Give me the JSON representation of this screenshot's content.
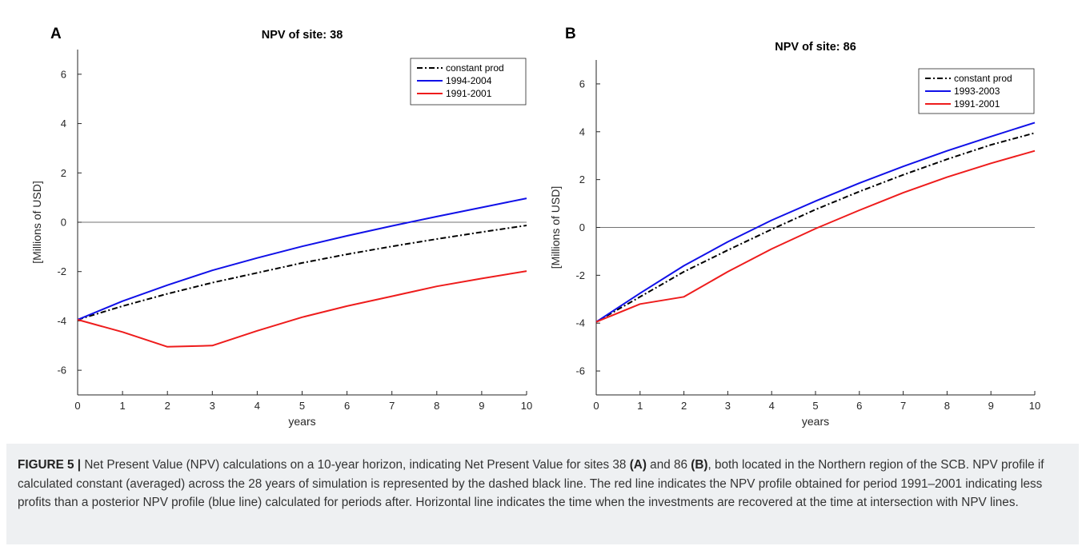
{
  "chart_data": [
    {
      "panel_label": "A",
      "type": "line",
      "title": "NPV of site: 38",
      "xlabel": "years",
      "ylabel": "[Millions of USD]",
      "xlim": [
        0,
        10
      ],
      "ylim": [
        -7,
        7
      ],
      "xticks": [
        0,
        1,
        2,
        3,
        4,
        5,
        6,
        7,
        8,
        9,
        10
      ],
      "yticks": [
        -6,
        -4,
        -2,
        0,
        2,
        4,
        6
      ],
      "zero_line": true,
      "grid": false,
      "legend_position": "top-right",
      "x": [
        0,
        1,
        2,
        3,
        4,
        5,
        6,
        7,
        8,
        9,
        10
      ],
      "series": [
        {
          "name": "constant prod",
          "color": "#000000",
          "style": "dashdot",
          "values": [
            -3.95,
            -3.4,
            -2.9,
            -2.45,
            -2.05,
            -1.65,
            -1.3,
            -0.98,
            -0.68,
            -0.4,
            -0.13
          ]
        },
        {
          "name": "1994-2004",
          "color": "#1010e8",
          "style": "solid",
          "values": [
            -3.95,
            -3.2,
            -2.55,
            -1.95,
            -1.45,
            -0.98,
            -0.55,
            -0.15,
            0.23,
            0.6,
            0.97
          ]
        },
        {
          "name": "1991-2001",
          "color": "#ee1c1c",
          "style": "solid",
          "values": [
            -3.95,
            -4.45,
            -5.05,
            -5.0,
            -4.4,
            -3.85,
            -3.4,
            -3.0,
            -2.6,
            -2.28,
            -1.98
          ]
        }
      ]
    },
    {
      "panel_label": "B",
      "type": "line",
      "title": "NPV of site: 86",
      "xlabel": "years",
      "ylabel": "[Millions of USD]",
      "xlim": [
        0,
        10
      ],
      "ylim": [
        -7,
        7
      ],
      "xticks": [
        0,
        1,
        2,
        3,
        4,
        5,
        6,
        7,
        8,
        9,
        10
      ],
      "yticks": [
        -6,
        -4,
        -2,
        0,
        2,
        4,
        6
      ],
      "zero_line": true,
      "grid": false,
      "legend_position": "top-right",
      "x": [
        0,
        1,
        2,
        3,
        4,
        5,
        6,
        7,
        8,
        9,
        10
      ],
      "series": [
        {
          "name": "constant prod",
          "color": "#000000",
          "style": "dashdot",
          "values": [
            -3.95,
            -2.9,
            -1.85,
            -0.95,
            -0.08,
            0.75,
            1.5,
            2.2,
            2.85,
            3.45,
            3.95
          ]
        },
        {
          "name": "1993-2003",
          "color": "#1010e8",
          "style": "solid",
          "values": [
            -3.95,
            -2.75,
            -1.6,
            -0.6,
            0.3,
            1.1,
            1.85,
            2.55,
            3.2,
            3.8,
            4.38
          ]
        },
        {
          "name": "1991-2001",
          "color": "#ee1c1c",
          "style": "solid",
          "values": [
            -3.95,
            -3.2,
            -2.9,
            -1.85,
            -0.9,
            -0.05,
            0.72,
            1.45,
            2.1,
            2.68,
            3.2
          ]
        }
      ]
    }
  ],
  "caption": {
    "label": "FIGURE 5 |",
    "t1": " Net Present Value (NPV) calculations on a 10-year horizon, indicating Net Present Value for sites 38 ",
    "a": "(A)",
    "t2": " and 86 ",
    "b": "(B)",
    "t3": ", both located in the Northern region of the SCB. NPV profile if calculated constant (averaged) across the 28 years of simulation is represented by the dashed black line. The red line indicates the NPV profile obtained for period 1991–2001 indicating less profits than a posterior NPV profile (blue line) calculated for periods after. Horizontal line indicates the time when the investments are recovered at the time at intersection with NPV lines."
  }
}
